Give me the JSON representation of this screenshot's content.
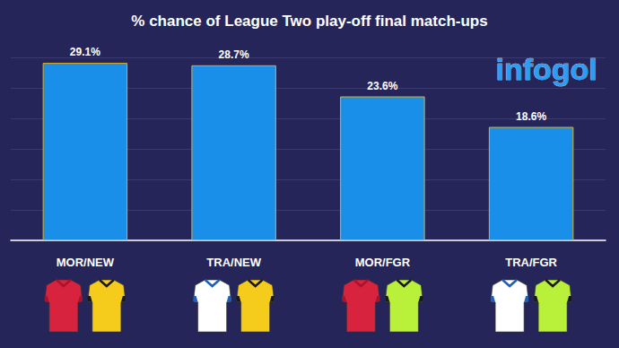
{
  "chart_data": {
    "type": "bar",
    "title": "% chance of League Two play-off final match-ups",
    "categories": [
      "MOR/NEW",
      "TRA/NEW",
      "MOR/FGR",
      "TRA/FGR"
    ],
    "values": [
      29.1,
      28.7,
      23.6,
      18.6
    ],
    "value_labels": [
      "29.1%",
      "28.7%",
      "23.6%",
      "18.6%"
    ],
    "color": "#1a8fea",
    "ylim": [
      0,
      30
    ],
    "yticks": [
      0,
      5,
      10,
      15,
      20,
      25,
      30
    ],
    "grid": true,
    "data_labels": true,
    "tick_labels": "x",
    "annotations": [
      "infogol"
    ]
  }
}
